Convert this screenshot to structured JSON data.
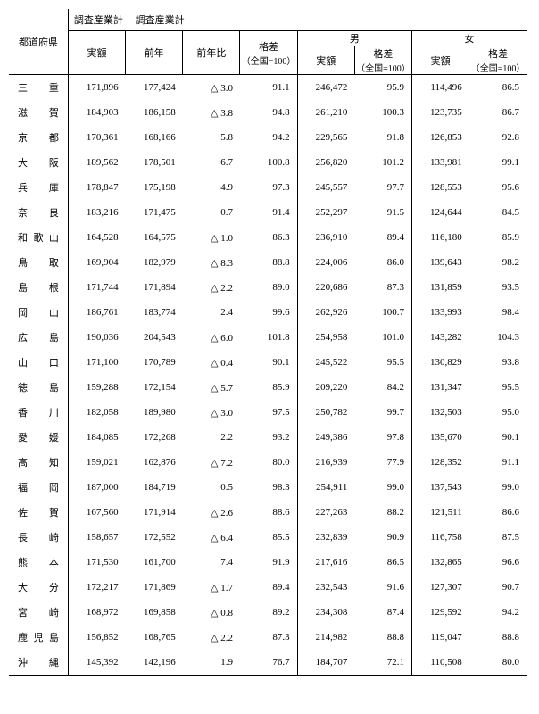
{
  "labels": {
    "prefecture": "都道府県",
    "survey_total": "調査産業計",
    "survey_total2": "調査産業計",
    "male": "男",
    "female": "女",
    "actual": "実額",
    "prev_year": "前年",
    "yoy": "前年比",
    "gap": "格差",
    "gap_note": "（全国=100）"
  },
  "columns": [
    "pref",
    "c1",
    "c2",
    "c3",
    "c4",
    "c5",
    "c6",
    "c7",
    "c8"
  ],
  "rows": [
    {
      "pref": "三重",
      "c1": "171,896",
      "c2": "177,424",
      "c3": "△ 3.0",
      "c4": "91.1",
      "c5": "246,472",
      "c6": "95.9",
      "c7": "114,496",
      "c8": "86.5"
    },
    {
      "pref": "滋賀",
      "c1": "184,903",
      "c2": "186,158",
      "c3": "△ 3.8",
      "c4": "94.8",
      "c5": "261,210",
      "c6": "100.3",
      "c7": "123,735",
      "c8": "86.7"
    },
    {
      "pref": "京都",
      "c1": "170,361",
      "c2": "168,166",
      "c3": "5.8",
      "c4": "94.2",
      "c5": "229,565",
      "c6": "91.8",
      "c7": "126,853",
      "c8": "92.8"
    },
    {
      "pref": "大阪",
      "c1": "189,562",
      "c2": "178,501",
      "c3": "6.7",
      "c4": "100.8",
      "c5": "256,820",
      "c6": "101.2",
      "c7": "133,981",
      "c8": "99.1"
    },
    {
      "pref": "兵庫",
      "c1": "178,847",
      "c2": "175,198",
      "c3": "4.9",
      "c4": "97.3",
      "c5": "245,557",
      "c6": "97.7",
      "c7": "128,553",
      "c8": "95.6"
    },
    {
      "pref": "奈良",
      "c1": "183,216",
      "c2": "171,475",
      "c3": "0.7",
      "c4": "91.4",
      "c5": "252,297",
      "c6": "91.5",
      "c7": "124,644",
      "c8": "84.5"
    },
    {
      "pref": "和歌山",
      "c1": "164,528",
      "c2": "164,575",
      "c3": "△ 1.0",
      "c4": "86.3",
      "c5": "236,910",
      "c6": "89.4",
      "c7": "116,180",
      "c8": "85.9"
    },
    {
      "pref": "鳥取",
      "c1": "169,904",
      "c2": "182,979",
      "c3": "△ 8.3",
      "c4": "88.8",
      "c5": "224,006",
      "c6": "86.0",
      "c7": "139,643",
      "c8": "98.2"
    },
    {
      "pref": "島根",
      "c1": "171,744",
      "c2": "171,894",
      "c3": "△ 2.2",
      "c4": "89.0",
      "c5": "220,686",
      "c6": "87.3",
      "c7": "131,859",
      "c8": "93.5"
    },
    {
      "pref": "岡山",
      "c1": "186,761",
      "c2": "183,774",
      "c3": "2.4",
      "c4": "99.6",
      "c5": "262,926",
      "c6": "100.7",
      "c7": "133,993",
      "c8": "98.4"
    },
    {
      "pref": "広島",
      "c1": "190,036",
      "c2": "204,543",
      "c3": "△ 6.0",
      "c4": "101.8",
      "c5": "254,958",
      "c6": "101.0",
      "c7": "143,282",
      "c8": "104.3"
    },
    {
      "pref": "山口",
      "c1": "171,100",
      "c2": "170,789",
      "c3": "△ 0.4",
      "c4": "90.1",
      "c5": "245,522",
      "c6": "95.5",
      "c7": "130,829",
      "c8": "93.8"
    },
    {
      "pref": "徳島",
      "c1": "159,288",
      "c2": "172,154",
      "c3": "△ 5.7",
      "c4": "85.9",
      "c5": "209,220",
      "c6": "84.2",
      "c7": "131,347",
      "c8": "95.5"
    },
    {
      "pref": "香川",
      "c1": "182,058",
      "c2": "189,980",
      "c3": "△ 3.0",
      "c4": "97.5",
      "c5": "250,782",
      "c6": "99.7",
      "c7": "132,503",
      "c8": "95.0"
    },
    {
      "pref": "愛媛",
      "c1": "184,085",
      "c2": "172,268",
      "c3": "2.2",
      "c4": "93.2",
      "c5": "249,386",
      "c6": "97.8",
      "c7": "135,670",
      "c8": "90.1"
    },
    {
      "pref": "高知",
      "c1": "159,021",
      "c2": "162,876",
      "c3": "△ 7.2",
      "c4": "80.0",
      "c5": "216,939",
      "c6": "77.9",
      "c7": "128,352",
      "c8": "91.1"
    },
    {
      "pref": "福岡",
      "c1": "187,000",
      "c2": "184,719",
      "c3": "0.5",
      "c4": "98.3",
      "c5": "254,911",
      "c6": "99.0",
      "c7": "137,543",
      "c8": "99.0"
    },
    {
      "pref": "佐賀",
      "c1": "167,560",
      "c2": "171,914",
      "c3": "△ 2.6",
      "c4": "88.6",
      "c5": "227,263",
      "c6": "88.2",
      "c7": "121,511",
      "c8": "86.6"
    },
    {
      "pref": "長崎",
      "c1": "158,657",
      "c2": "172,552",
      "c3": "△ 6.4",
      "c4": "85.5",
      "c5": "232,839",
      "c6": "90.9",
      "c7": "116,758",
      "c8": "87.5"
    },
    {
      "pref": "熊本",
      "c1": "171,530",
      "c2": "161,700",
      "c3": "7.4",
      "c4": "91.9",
      "c5": "217,616",
      "c6": "86.5",
      "c7": "132,865",
      "c8": "96.6"
    },
    {
      "pref": "大分",
      "c1": "172,217",
      "c2": "171,869",
      "c3": "△ 1.7",
      "c4": "89.4",
      "c5": "232,543",
      "c6": "91.6",
      "c7": "127,307",
      "c8": "90.7"
    },
    {
      "pref": "宮崎",
      "c1": "168,972",
      "c2": "169,858",
      "c3": "△ 0.8",
      "c4": "89.2",
      "c5": "234,308",
      "c6": "87.4",
      "c7": "129,592",
      "c8": "94.2"
    },
    {
      "pref": "鹿児島",
      "c1": "156,852",
      "c2": "168,765",
      "c3": "△ 2.2",
      "c4": "87.3",
      "c5": "214,982",
      "c6": "88.8",
      "c7": "119,047",
      "c8": "88.8"
    },
    {
      "pref": "沖縄",
      "c1": "145,392",
      "c2": "142,196",
      "c3": "1.9",
      "c4": "76.7",
      "c5": "184,707",
      "c6": "72.1",
      "c7": "110,508",
      "c8": "80.0"
    }
  ]
}
